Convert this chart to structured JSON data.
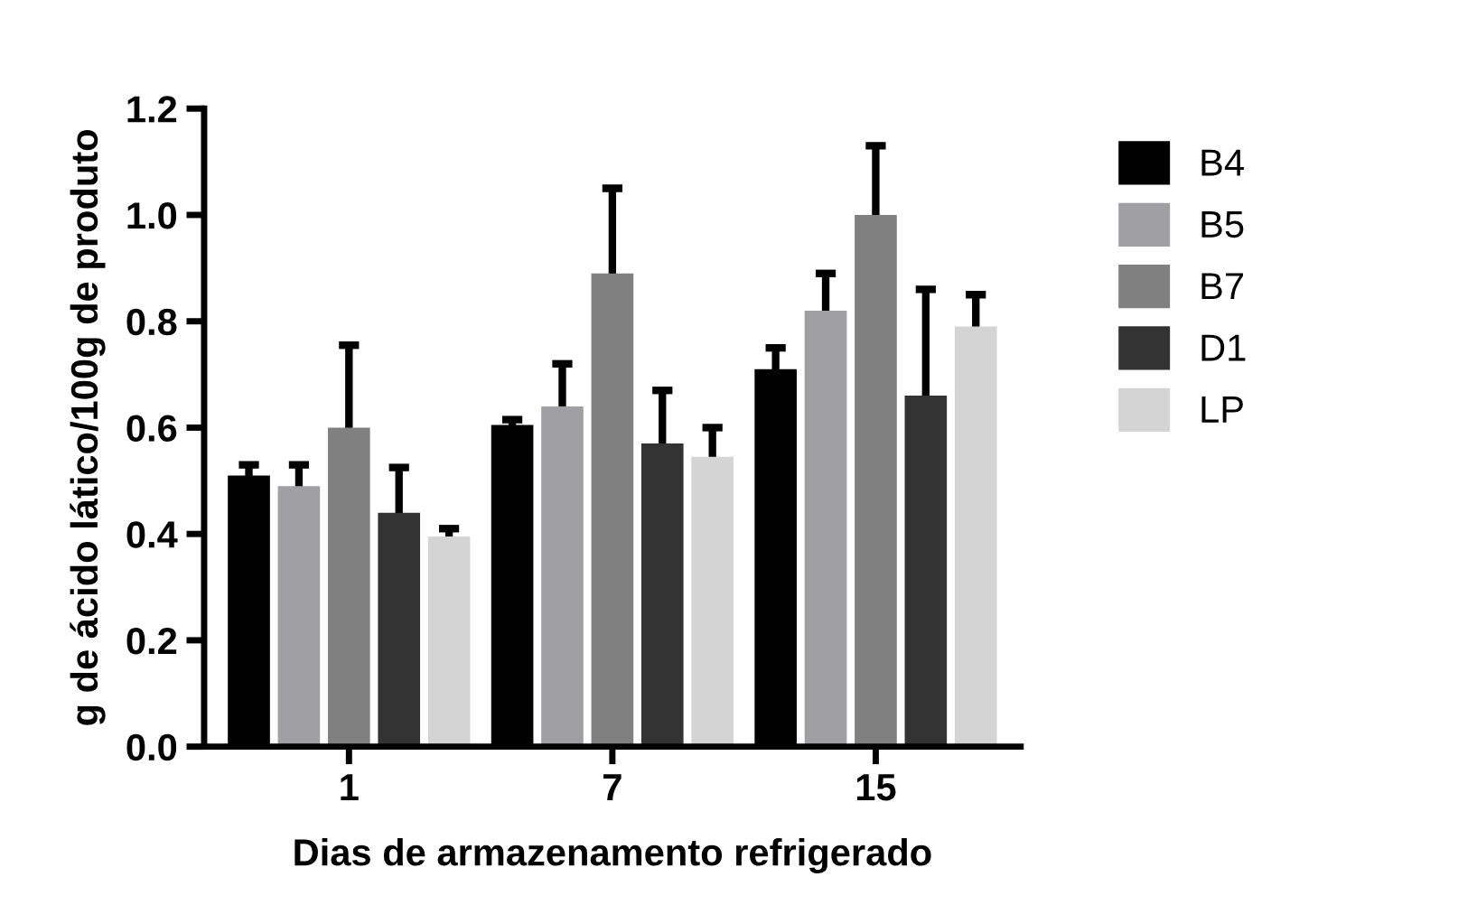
{
  "chart_data": {
    "type": "bar",
    "xlabel": "Dias de armazenamento refrigerado",
    "ylabel": "g de ácido lático/100g de produto",
    "categories": [
      "1",
      "7",
      "15"
    ],
    "ylim": [
      0,
      1.2
    ],
    "yticks": [
      {
        "value": 0,
        "label": "0.0"
      },
      0.2,
      0.4,
      0.6,
      0.8,
      {
        "value": 1,
        "label": "1.0"
      },
      1.2
    ],
    "grid": false,
    "legend": "right",
    "series": [
      {
        "name": "B4",
        "color": "#000000",
        "values": [
          0.51,
          0.605,
          0.71
        ],
        "errors": [
          0.02,
          0.01,
          0.04
        ]
      },
      {
        "name": "B5",
        "color": "#a0a0a4",
        "values": [
          0.49,
          0.64,
          0.82
        ],
        "errors": [
          0.04,
          0.08,
          0.07
        ]
      },
      {
        "name": "B7",
        "color": "#808080",
        "values": [
          0.6,
          0.89,
          1.0
        ],
        "errors": [
          0.155,
          0.16,
          0.13
        ]
      },
      {
        "name": "D1",
        "color": "#333333",
        "values": [
          0.44,
          0.57,
          0.66
        ],
        "errors": [
          0.085,
          0.1,
          0.2
        ]
      },
      {
        "name": "LP",
        "color": "#d4d4d4",
        "values": [
          0.395,
          0.545,
          0.79
        ],
        "errors": [
          0.015,
          0.055,
          0.06
        ]
      }
    ]
  }
}
